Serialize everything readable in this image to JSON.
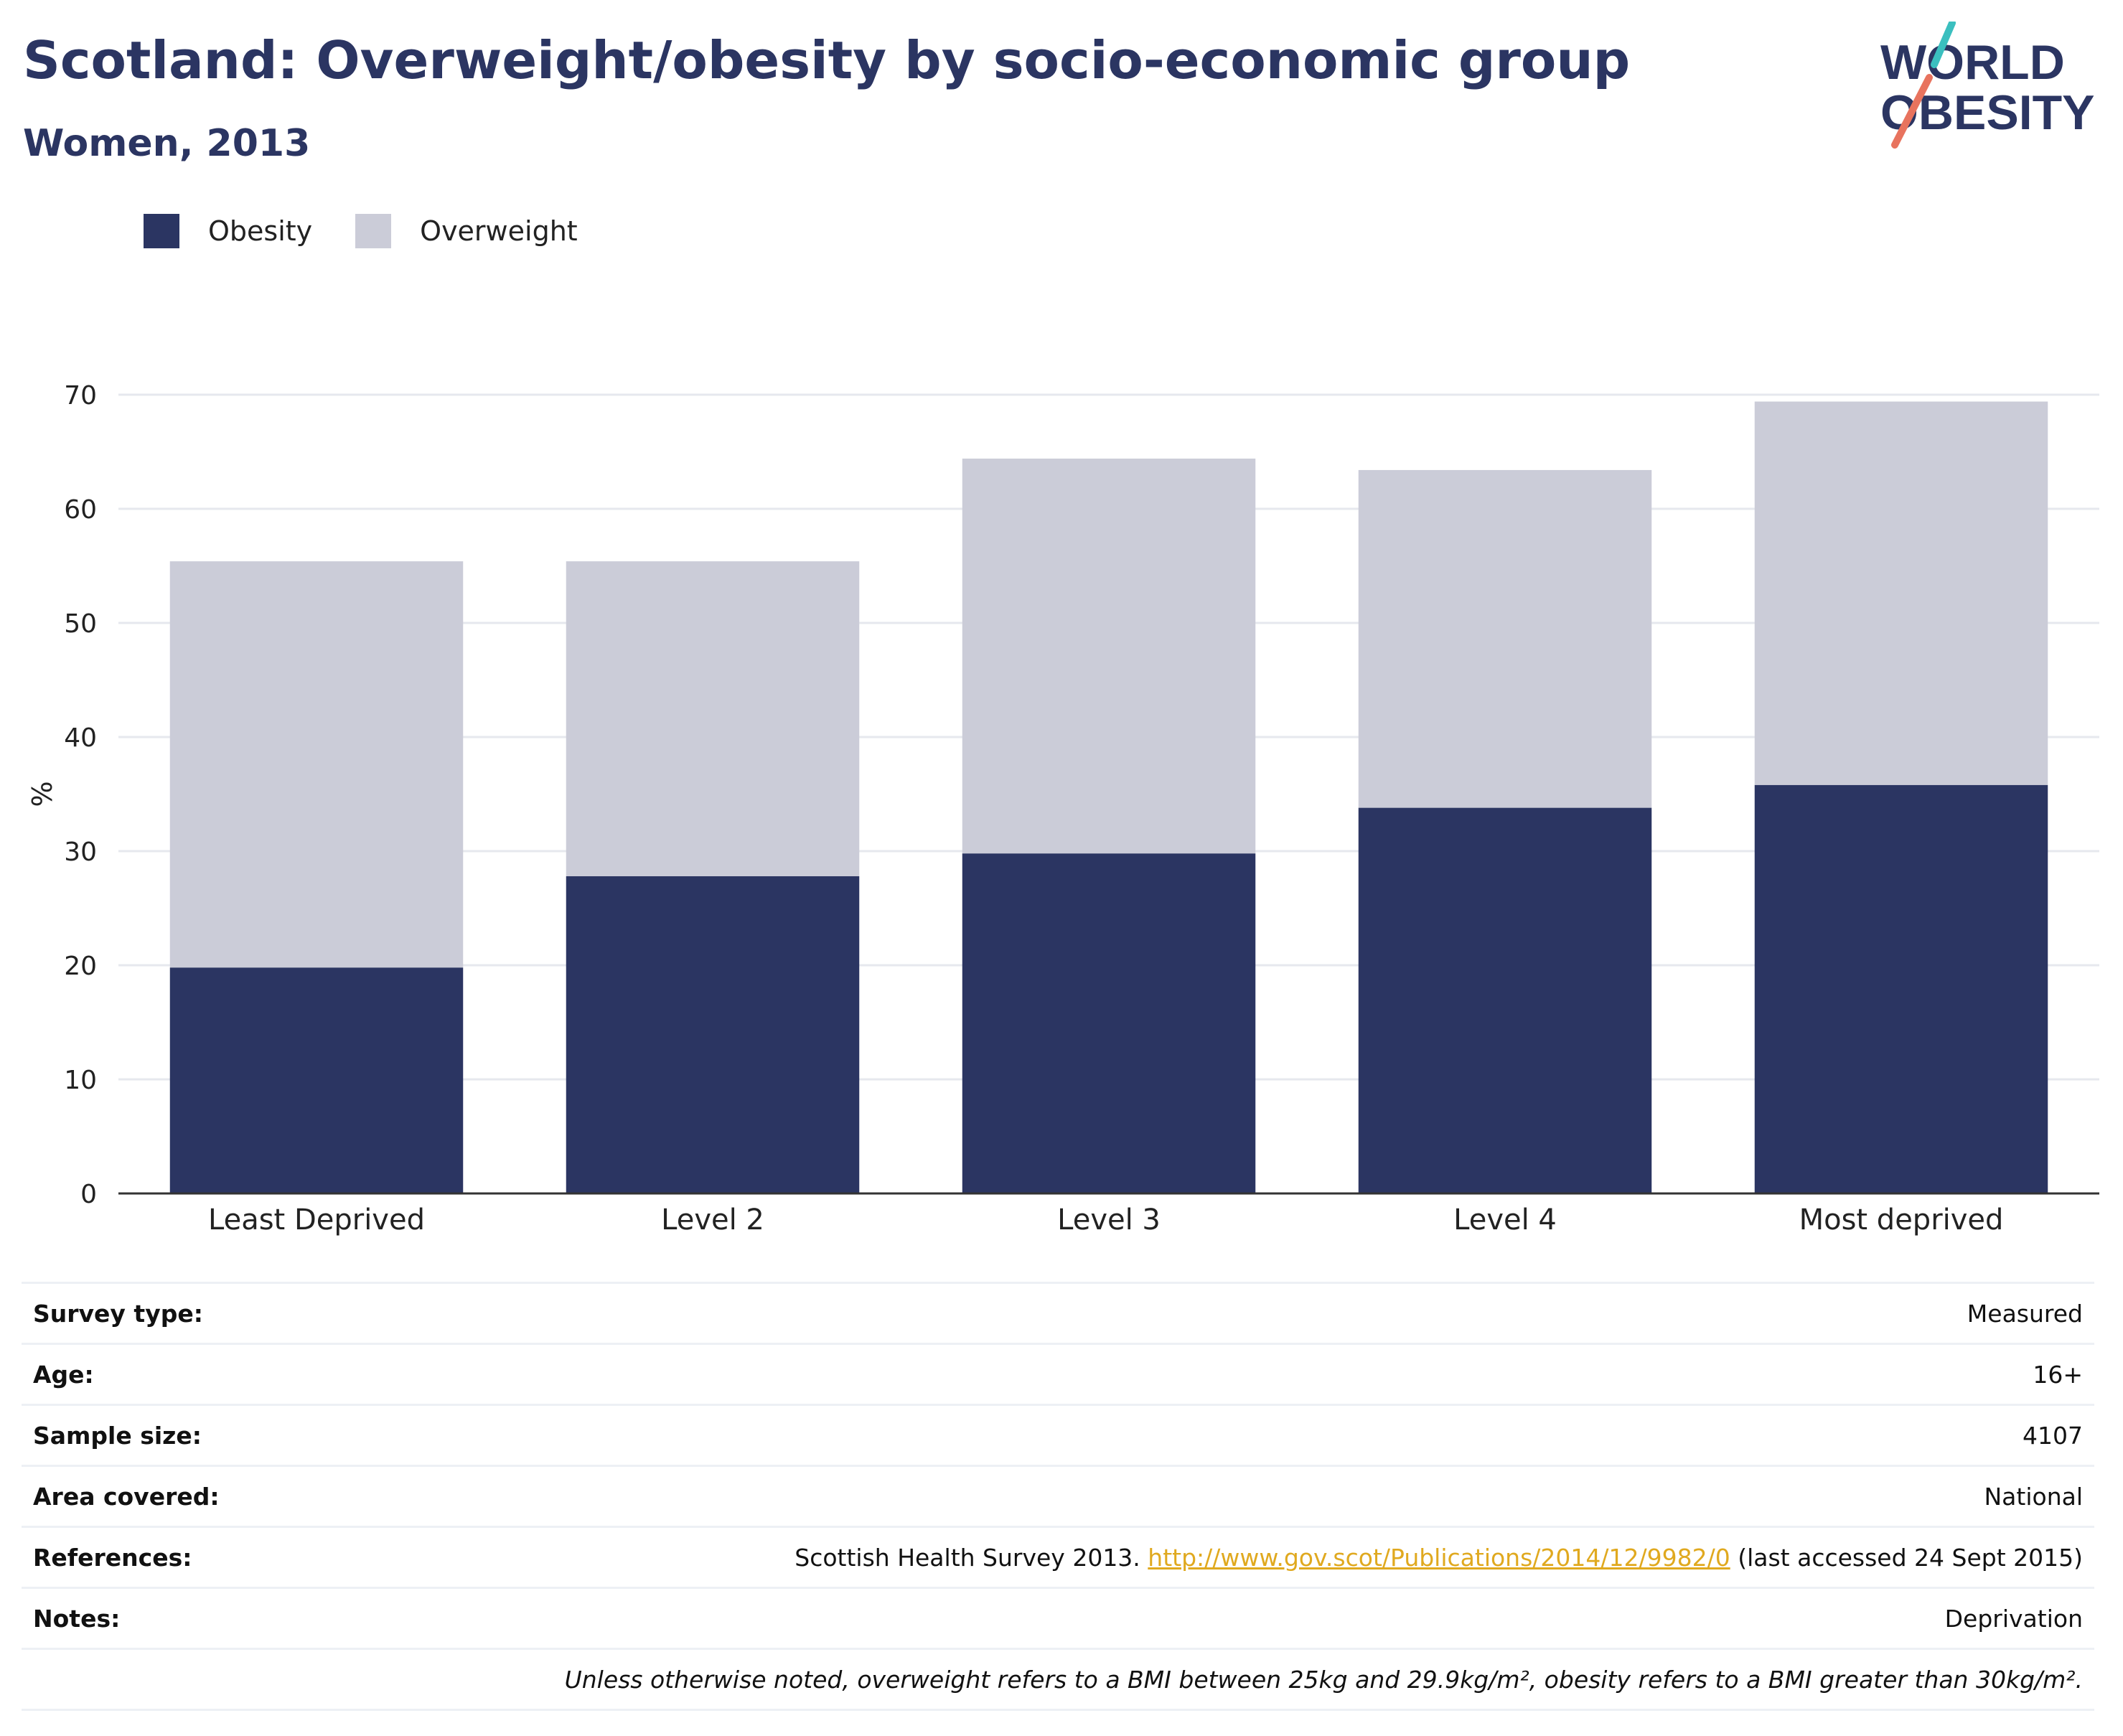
{
  "header": {
    "title": "Scotland: Overweight/obesity by socio-economic group",
    "subtitle": "Women, 2013"
  },
  "logo": {
    "line1": "WORLD",
    "line2": "OBESITY",
    "accent_teal": "#3bbfbf",
    "accent_coral": "#e8735e"
  },
  "legend": [
    {
      "label": "Obesity",
      "color": "#2b3562"
    },
    {
      "label": "Overweight",
      "color": "#cbccd8"
    }
  ],
  "chart_data": {
    "type": "bar",
    "stacked": true,
    "categories": [
      "Least Deprived",
      "Level 2",
      "Level 3",
      "Level 4",
      "Most deprived"
    ],
    "series": [
      {
        "name": "Obesity",
        "color": "#2b3562",
        "values": [
          19.8,
          27.8,
          29.8,
          33.8,
          35.8
        ]
      },
      {
        "name": "Overweight",
        "color": "#cbccd8",
        "values": [
          35.6,
          27.6,
          34.6,
          29.6,
          33.6
        ]
      }
    ],
    "ylabel": "%",
    "ylim": [
      0,
      70
    ],
    "yticks": [
      0,
      10,
      20,
      30,
      40,
      50,
      60,
      70
    ],
    "grid": true,
    "legend_position": "top-left"
  },
  "info": {
    "survey_type": {
      "label": "Survey type:",
      "value": "Measured"
    },
    "age": {
      "label": "Age:",
      "value": "16+"
    },
    "sample_size": {
      "label": "Sample size:",
      "value": "4107"
    },
    "area": {
      "label": "Area covered:",
      "value": "National"
    },
    "references": {
      "label": "References:",
      "prefix": "Scottish Health Survey 2013. ",
      "link": "http://www.gov.scot/Publications/2014/12/9982/0",
      "suffix": " (last accessed 24 Sept 2015)"
    },
    "notes": {
      "label": "Notes:",
      "value": "Deprivation"
    },
    "footnote": "Unless otherwise noted, overweight refers to a BMI between 25kg and 29.9kg/m², obesity refers to a BMI greater than 30kg/m²."
  }
}
